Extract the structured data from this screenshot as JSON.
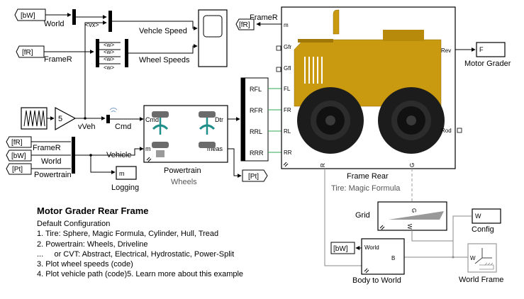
{
  "tags": {
    "bw_top": "[bW]",
    "fr_top": "[fR]",
    "fr_mid": "[fR]",
    "bw_mid": "[bW]",
    "pt_mid": "[Pt]",
    "pt_out": "[Pt]",
    "fr_grader": "[fR]",
    "bw_world": "[bW]"
  },
  "labels": {
    "world_top": "World",
    "framer_top": "FrameR",
    "vx": "<vx>",
    "w1": "<w>",
    "w2": "<w>",
    "w3": "<w>",
    "w4": "<w>",
    "vehicle_speed": "Vehcle Speed",
    "wheel_speeds": "Wheel Speeds",
    "gain_value": "5",
    "vveh": "vVeh",
    "cmd": "Cmd",
    "framer_mid": "FrameR",
    "world_mid": "World",
    "powertrain_mid": "Powertrain",
    "vehicle": "Vehicle",
    "logging_port": "m",
    "logging": "Logging"
  },
  "powertrain": {
    "in_cmd": "Cmd",
    "in_m": "m",
    "out_dtr": "Dtr",
    "out_meas": "meas",
    "title": "Powertrain",
    "subtitle": "Wheels"
  },
  "wheelbus": {
    "ports": [
      "RFL",
      "RFR",
      "RRL",
      "RRR"
    ]
  },
  "frame_rear": {
    "framer_label": "FrameR",
    "in_m": "m",
    "in_gfr": "Gfr",
    "in_gfl": "Gfl",
    "in_fl": "FL",
    "in_fr": "FR",
    "in_rl": "RL",
    "in_rr": "RR",
    "out_rev": "Rev",
    "out_rod": "Rod",
    "bottom_r": "R",
    "bottom_g": "G",
    "title": "Frame Rear",
    "subtitle": "Tire: Magic Formula"
  },
  "motor_grader": {
    "port": "F",
    "label": "Motor Grader"
  },
  "grid": {
    "label": "Grid",
    "port_g": "G",
    "port_w": "W"
  },
  "config": {
    "port": "W",
    "label": "Config"
  },
  "body_to_world": {
    "in": "World",
    "out": "B",
    "label": "Body to World"
  },
  "world_frame": {
    "port": "W",
    "label": "World Frame"
  },
  "description": {
    "title": "Motor Grader Rear Frame",
    "lines": [
      "Default Configuration",
      "1. Tire: Sphere, Magic Formula, Cylinder, Hull, Tread",
      "2. Powertrain: Wheels, Driveline",
      "...     or CVT: Abstract, Electrical, Hydrostatic, Power-Split",
      "3. Plot wheel speeds (code)",
      "4. Plot vehicle path (code)5. Learn more about this example"
    ]
  },
  "colors": {
    "grader_body": "#c99a10",
    "physical_wire": "#2fa84f",
    "tire": "#1c1c1c",
    "wheel_joint": "#1f8f8a"
  }
}
